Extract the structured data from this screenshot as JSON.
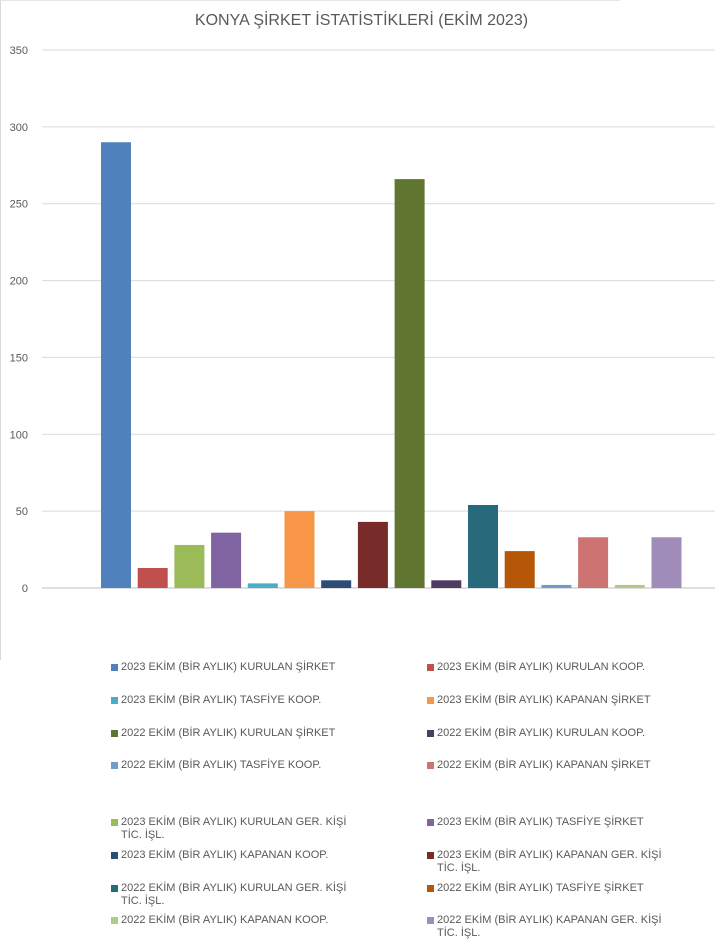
{
  "chart_data": {
    "type": "bar",
    "title": "KONYA ŞİRKET İSTATİSTİKLERİ (EKİM 2023)",
    "xlabel": "",
    "ylabel": "",
    "ylim": [
      0,
      350
    ],
    "yticks": [
      "0",
      "50",
      "100",
      "150",
      "200",
      "250",
      "300",
      "350"
    ],
    "grid": true,
    "legend_position": "bottom",
    "series": [
      {
        "name": "2023  EKİM (BİR AYLIK) KURULAN ŞİRKET",
        "value": 290,
        "color": "#4f81bd"
      },
      {
        "name": "2023  EKİM (BİR AYLIK) KURULAN KOOP.",
        "value": 13,
        "color": "#c0504d"
      },
      {
        "name": "2023  EKİM (BİR AYLIK) KURULAN GER. KİŞİ TİC. İŞL.",
        "value": 28,
        "color": "#9bbb59"
      },
      {
        "name": "2023  EKİM (BİR AYLIK) TASFİYE ŞİRKET",
        "value": 36,
        "color": "#8064a2"
      },
      {
        "name": "2023  EKİM (BİR AYLIK) TASFİYE KOOP.",
        "value": 3,
        "color": "#4bacc6"
      },
      {
        "name": "2023  EKİM (BİR AYLIK) KAPANAN ŞİRKET",
        "value": 50,
        "color": "#f79646"
      },
      {
        "name": "2023  EKİM (BİR AYLIK) KAPANAN KOOP.",
        "value": 5,
        "color": "#2c4d75"
      },
      {
        "name": "2023  EKİM (BİR AYLIK) KAPANAN GER. KİŞİ TİC. İŞL.",
        "value": 43,
        "color": "#772c2a"
      },
      {
        "name": "2022  EKİM (BİR AYLIK) KURULAN ŞİRKET",
        "value": 266,
        "color": "#5f7530"
      },
      {
        "name": "2022  EKİM (BİR AYLIK) KURULAN KOOP.",
        "value": 5,
        "color": "#4d3b62"
      },
      {
        "name": "2022  EKİM (BİR AYLIK) KURULAN GER. KİŞİ TİC. İŞL.",
        "value": 54,
        "color": "#276a7c"
      },
      {
        "name": "2022  EKİM (BİR AYLIK) TASFİYE ŞİRKET",
        "value": 24,
        "color": "#b65708"
      },
      {
        "name": "2022  EKİM (BİR AYLIK) TASFİYE KOOP.",
        "value": 2,
        "color": "#729aca"
      },
      {
        "name": "2022  EKİM (BİR AYLIK) KAPANAN ŞİRKET",
        "value": 33,
        "color": "#cd7371"
      },
      {
        "name": "2022  EKİM (BİR AYLIK) KAPANAN KOOP.",
        "value": 2,
        "color": "#b2ca88"
      },
      {
        "name": "2022  EKİM (BİR AYLIK) KAPANAN GER. KİŞİ TİC. İŞL.",
        "value": 33,
        "color": "#9f8cb8"
      }
    ],
    "legend_order": [
      0,
      1,
      4,
      5,
      8,
      9,
      12,
      13,
      2,
      3,
      6,
      7,
      10,
      11,
      14,
      15
    ]
  }
}
